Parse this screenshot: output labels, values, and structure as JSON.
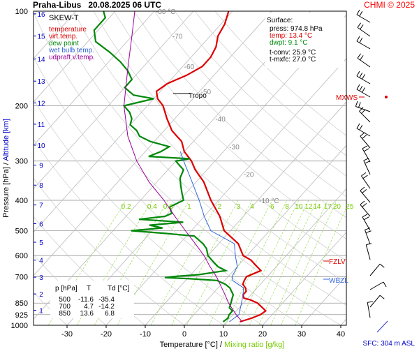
{
  "header": {
    "title": "Praha-Libus   20.08.2025 06 UTC",
    "credit": "CHMI © 2025"
  },
  "colors": {
    "temperature": "#dd0000",
    "virt_temp": "#dd0000",
    "dew_point": "#00880a",
    "wet_bulb": "#3366dd",
    "updraft": "#990099",
    "mixing_ratio": "#77cc00",
    "km": "#0000cc"
  },
  "legend": {
    "title": "SKEW-T",
    "items": [
      {
        "label": "temperature",
        "color": "#dd0000"
      },
      {
        "label": "virt.temp.",
        "color": "#dd0000"
      },
      {
        "label": "dew point",
        "color": "#00880a"
      },
      {
        "label": "wet bulb temp.",
        "color": "#3366dd"
      },
      {
        "label": "udpraft v.temp.",
        "color": "#990099"
      }
    ]
  },
  "surface": {
    "title": "Surface:",
    "press": "press: 974.8 hPa",
    "temp": "temp: 13.4 °C",
    "dwpt": "dwpt: 9.1 °C",
    "tconv": "t-conv: 25.9 °C",
    "tmxfc": "t-mxfc: 27.0 °C"
  },
  "table": {
    "headers": [
      "p [hPa]",
      "T",
      "Td [°C]"
    ],
    "rows": [
      [
        "500",
        "-11.6",
        "-35.4"
      ],
      [
        "700",
        "4.7",
        "-14.2"
      ],
      [
        "850",
        "13.6",
        "6.8"
      ]
    ]
  },
  "levels": {
    "tropo": "Tropo",
    "mxws": "MXWS",
    "fzlv": "FZLV",
    "wbzl": "WBZL"
  },
  "sfc": "SFC: 304 m ASL",
  "chart_data": {
    "type": "line",
    "xlabel": "Temperature [°C]",
    "xlabel_sep": "/",
    "xlabel2": "Mixing ratio [g/kg]",
    "ylabel": "Pressure [hPa]",
    "ylabel_sep": "/",
    "ylabel2": "Altitude [km]",
    "xlim": [
      -36,
      42
    ],
    "ylim": [
      1000,
      100
    ],
    "y_scale": "log",
    "x_ticks": [
      "-30",
      "-20",
      "-10",
      "0",
      "10",
      "20",
      "30",
      "40"
    ],
    "x_tick_values": [
      -30,
      -20,
      -10,
      0,
      10,
      20,
      30,
      40
    ],
    "y_ticks": [
      "100",
      "200",
      "300",
      "400",
      "500",
      "600",
      "700",
      "850",
      "925",
      "1000"
    ],
    "y_tick_values": [
      100,
      200,
      300,
      400,
      500,
      600,
      700,
      850,
      925,
      1000
    ],
    "km_ticks": [
      "1",
      "2",
      "3",
      "4",
      "5",
      "6",
      "7",
      "8",
      "9",
      "10",
      "11",
      "12",
      "13",
      "14",
      "15",
      "16"
    ],
    "km_pressures": [
      896,
      795,
      703,
      620,
      544,
      475,
      414,
      358,
      309,
      267,
      229,
      196,
      167,
      142,
      120,
      102
    ],
    "isotherm_labels": [
      "-80 °C",
      "-70",
      "-60",
      "-50",
      "-40",
      "-30",
      "-20",
      "-10 °C"
    ],
    "isotherm_label_values": [
      -80,
      -70,
      -60,
      -50,
      -40,
      -30,
      -20,
      -10
    ],
    "mixing_ratio_labels": [
      "0.2",
      "0.4",
      "0.6",
      "1",
      "2",
      "3",
      "4",
      "6",
      "8",
      "10",
      "12",
      "14",
      "17",
      "20",
      "25"
    ],
    "series": [
      {
        "name": "temperature",
        "color": "#dd0000",
        "points": [
          [
            974.8,
            13.4
          ],
          [
            950,
            15.5
          ],
          [
            925,
            17
          ],
          [
            900,
            17.5
          ],
          [
            880,
            16
          ],
          [
            850,
            13.6
          ],
          [
            830,
            11
          ],
          [
            820,
            9
          ],
          [
            800,
            8
          ],
          [
            780,
            8
          ],
          [
            760,
            7
          ],
          [
            740,
            5.5
          ],
          [
            720,
            5
          ],
          [
            700,
            4.7
          ],
          [
            670,
            7
          ],
          [
            650,
            5
          ],
          [
            620,
            2
          ],
          [
            600,
            -1
          ],
          [
            550,
            -5
          ],
          [
            500,
            -11.6
          ],
          [
            450,
            -16
          ],
          [
            400,
            -22
          ],
          [
            350,
            -28
          ],
          [
            320,
            -33
          ],
          [
            300,
            -36
          ],
          [
            280,
            -40
          ],
          [
            260,
            -43
          ],
          [
            240,
            -48
          ],
          [
            220,
            -52
          ],
          [
            200,
            -56
          ],
          [
            190,
            -59
          ],
          [
            180,
            -61
          ],
          [
            170,
            -60
          ],
          [
            160,
            -57
          ],
          [
            150,
            -55
          ],
          [
            140,
            -55
          ],
          [
            130,
            -56
          ],
          [
            120,
            -58
          ],
          [
            110,
            -59
          ],
          [
            100,
            -61
          ]
        ]
      },
      {
        "name": "dew point",
        "color": "#00880a",
        "points": [
          [
            974.8,
            9.1
          ],
          [
            950,
            9.5
          ],
          [
            925,
            9
          ],
          [
            900,
            9
          ],
          [
            880,
            7.5
          ],
          [
            850,
            6.8
          ],
          [
            820,
            6
          ],
          [
            800,
            5.5
          ],
          [
            760,
            3
          ],
          [
            740,
            1
          ],
          [
            720,
            -2
          ],
          [
            710,
            -10
          ],
          [
            705,
            -16
          ],
          [
            700,
            -14.2
          ],
          [
            690,
            -8
          ],
          [
            670,
            -2
          ],
          [
            650,
            -5
          ],
          [
            620,
            -8
          ],
          [
            600,
            -10
          ],
          [
            570,
            -12
          ],
          [
            550,
            -14
          ],
          [
            520,
            -18
          ],
          [
            510,
            -26
          ],
          [
            500,
            -35.4
          ],
          [
            490,
            -28
          ],
          [
            480,
            -32
          ],
          [
            470,
            -24
          ],
          [
            460,
            -36
          ],
          [
            450,
            -30
          ],
          [
            440,
            -29
          ],
          [
            420,
            -31
          ],
          [
            400,
            -29
          ],
          [
            380,
            -31
          ],
          [
            360,
            -33
          ],
          [
            340,
            -35
          ],
          [
            320,
            -36
          ],
          [
            310,
            -38
          ],
          [
            300,
            -40
          ],
          [
            295,
            -37
          ],
          [
            290,
            -48
          ],
          [
            280,
            -46
          ],
          [
            270,
            -45
          ],
          [
            260,
            -51
          ],
          [
            250,
            -55
          ],
          [
            240,
            -57
          ],
          [
            230,
            -60
          ],
          [
            220,
            -61
          ],
          [
            210,
            -63
          ],
          [
            200,
            -66
          ],
          [
            195,
            -63
          ],
          [
            190,
            -60
          ],
          [
            185,
            -66
          ],
          [
            175,
            -70
          ],
          [
            165,
            -70
          ],
          [
            155,
            -73
          ],
          [
            145,
            -77
          ],
          [
            135,
            -82
          ],
          [
            125,
            -88
          ],
          [
            115,
            -91
          ],
          [
            105,
            -91
          ],
          [
            100,
            -93
          ]
        ]
      },
      {
        "name": "wet bulb temp.",
        "color": "#3366dd",
        "points": [
          [
            974.8,
            10.7
          ],
          [
            925,
            11.5
          ],
          [
            850,
            9.5
          ],
          [
            800,
            8
          ],
          [
            760,
            6.5
          ],
          [
            720,
            2
          ],
          [
            700,
            1
          ],
          [
            650,
            0
          ],
          [
            600,
            -3
          ],
          [
            550,
            -6
          ],
          [
            500,
            -15
          ],
          [
            450,
            -20
          ],
          [
            400,
            -25
          ],
          [
            350,
            -31
          ],
          [
            300,
            -38
          ],
          [
            280,
            -41
          ]
        ]
      },
      {
        "name": "udpraft v.temp.",
        "color": "#990099",
        "points": [
          [
            974.8,
            14
          ],
          [
            925,
            10.8
          ],
          [
            850,
            6.2
          ],
          [
            800,
            3.4
          ],
          [
            750,
            0.3
          ],
          [
            700,
            -3
          ],
          [
            650,
            -7
          ],
          [
            600,
            -11
          ],
          [
            550,
            -16
          ],
          [
            500,
            -21.5
          ],
          [
            450,
            -27.5
          ],
          [
            400,
            -34
          ],
          [
            350,
            -42
          ],
          [
            300,
            -50
          ],
          [
            250,
            -58
          ],
          [
            200,
            -66
          ],
          [
            150,
            -74
          ],
          [
            120,
            -80
          ],
          [
            100,
            -85
          ]
        ]
      }
    ]
  }
}
